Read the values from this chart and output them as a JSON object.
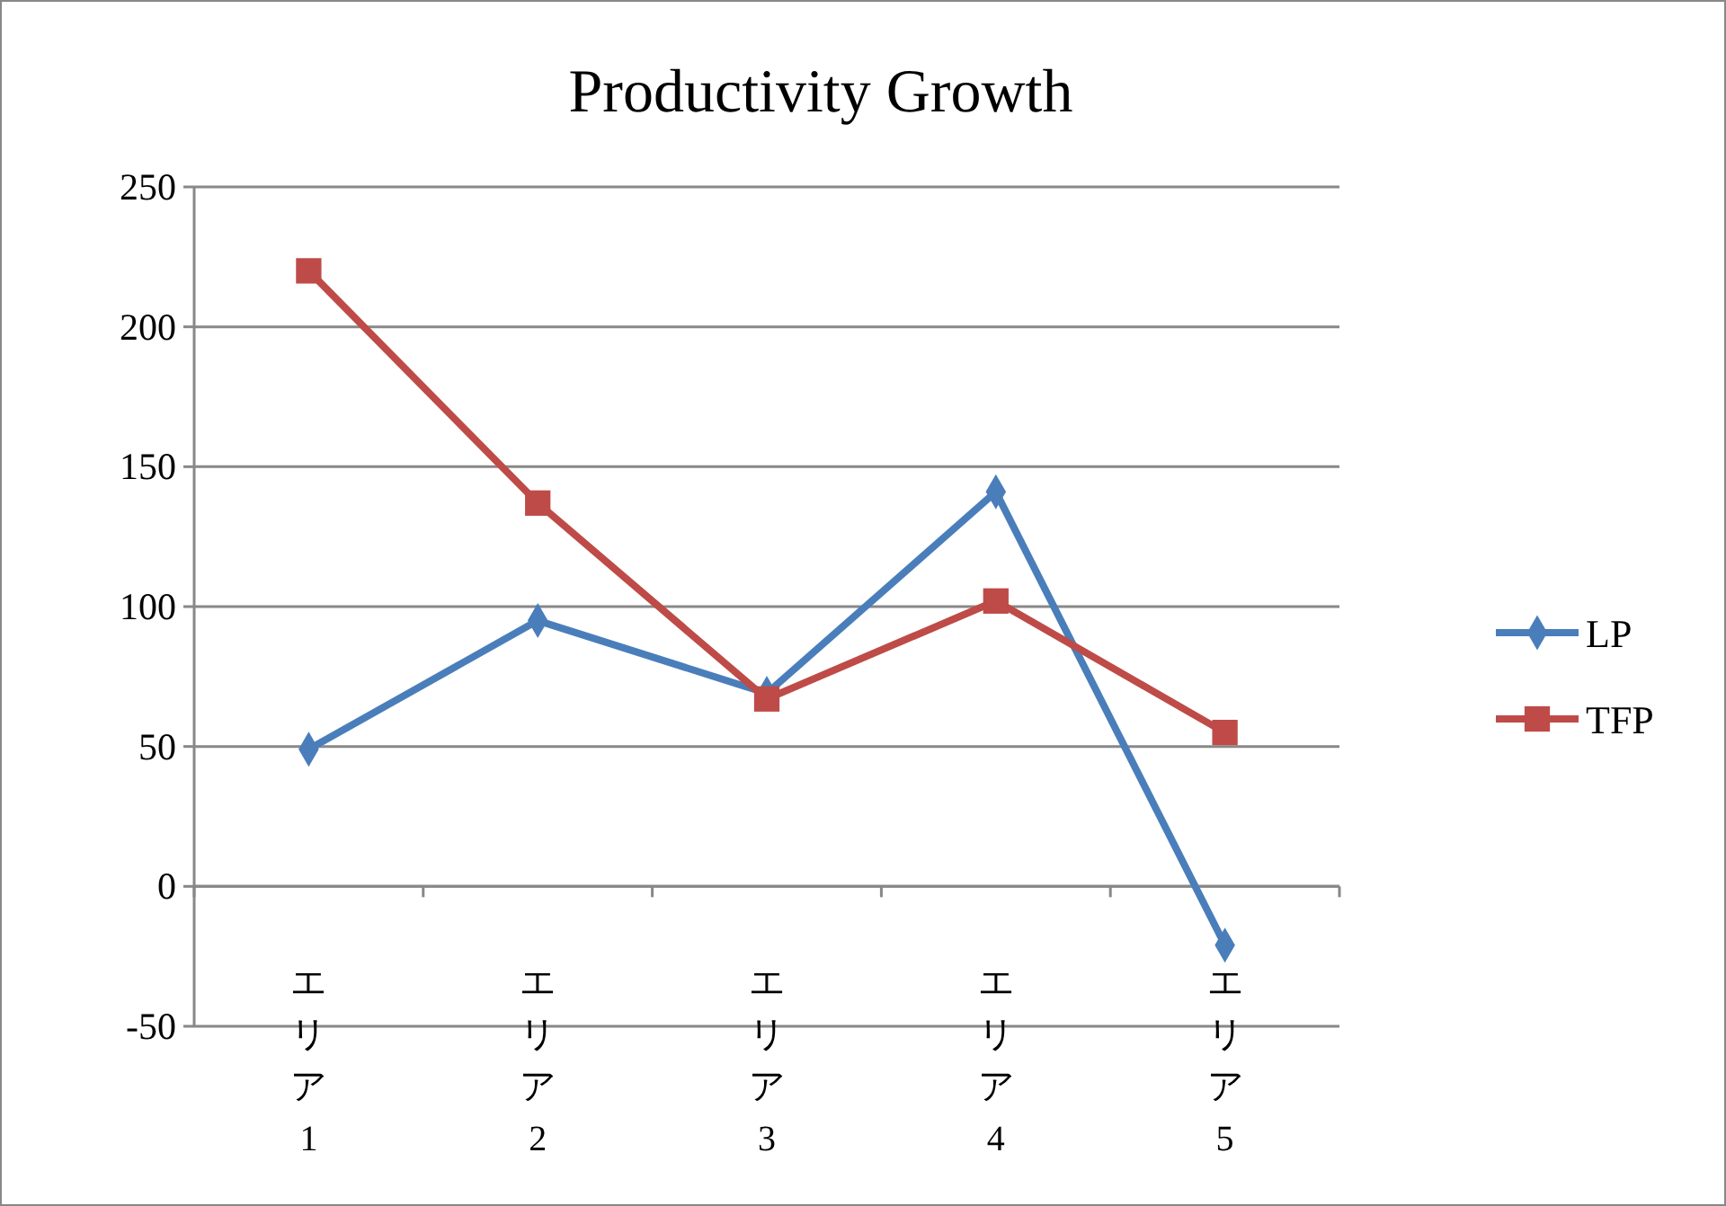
{
  "chart_data": {
    "type": "line",
    "title": "Productivity Growth",
    "categories": [
      "エリア1",
      "エリア2",
      "エリア3",
      "エリア4",
      "エリア5"
    ],
    "series": [
      {
        "name": "LP",
        "color": "#4a7ebb",
        "marker": "diamond",
        "values": [
          49,
          95,
          69,
          141,
          -21
        ]
      },
      {
        "name": "TFP",
        "color": "#be4b48",
        "marker": "square",
        "values": [
          220,
          137,
          67,
          102,
          55
        ]
      }
    ],
    "ylim": [
      -50,
      250
    ],
    "yticks": [
      -50,
      0,
      50,
      100,
      150,
      200,
      250
    ],
    "grid": "y",
    "legend": "right"
  }
}
